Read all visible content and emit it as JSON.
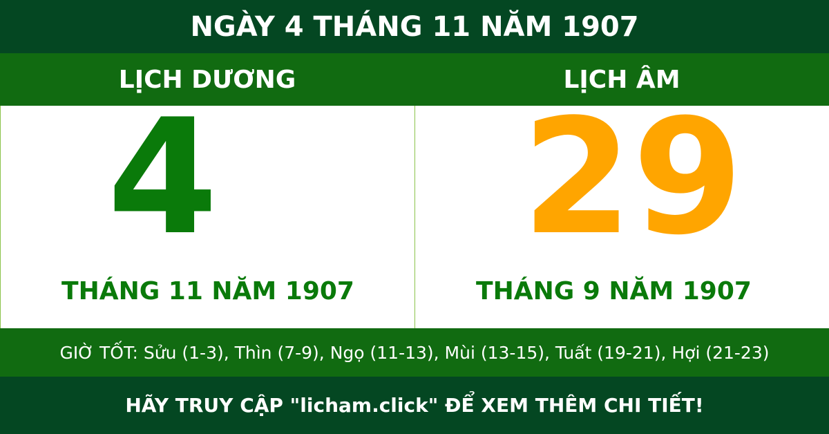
{
  "title": "NGÀY 4 THÁNG 11 NĂM 1907",
  "solar": {
    "heading": "LỊCH DƯƠNG",
    "day": "4",
    "month_year": "THÁNG 11 NĂM 1907"
  },
  "lunar": {
    "heading": "LỊCH ÂM",
    "day": "29",
    "month_year": "THÁNG 9 NĂM 1907"
  },
  "good_hours": "GIỜ TỐT: Sửu (1-3), Thìn (7-9), Ngọ (11-13), Mùi (13-15), Tuất (19-21), Hợi (21-23)",
  "footer": "HÃY TRUY CẬP \"licham.click\" ĐỂ XEM THÊM CHI TIẾT!",
  "colors": {
    "dark_green": "#044722",
    "green": "#116b11",
    "solar_day": "#0a7a0a",
    "lunar_day": "#ffa500"
  }
}
